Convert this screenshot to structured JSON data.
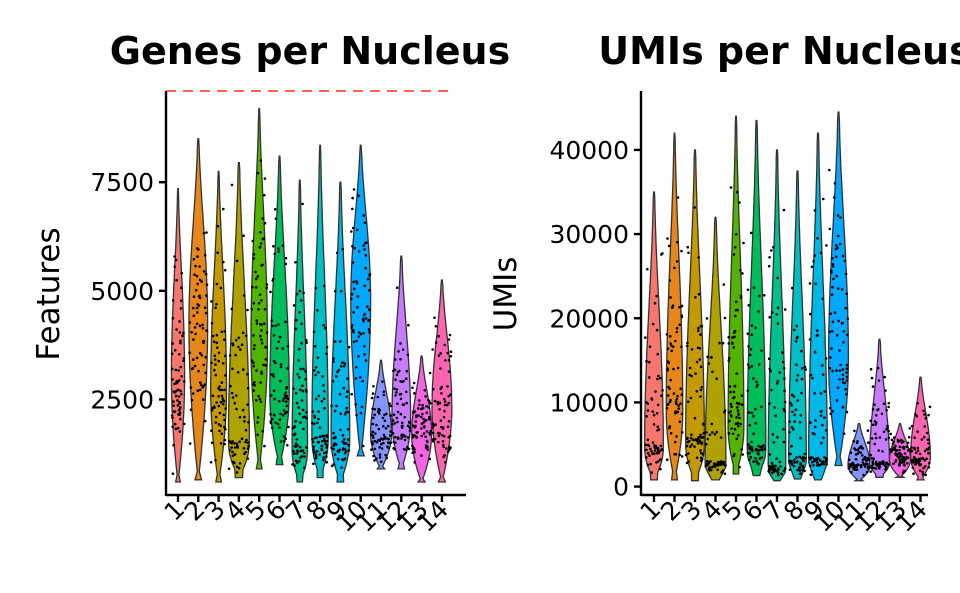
{
  "chart_data": [
    {
      "type": "violin",
      "title": "Genes per Nucleus",
      "xlabel": "",
      "ylabel": "Features",
      "categories": [
        "1",
        "2",
        "3",
        "4",
        "5",
        "6",
        "7",
        "8",
        "9",
        "10",
        "11",
        "12",
        "13",
        "14"
      ],
      "ylim": [
        300,
        9600
      ],
      "yticks": [
        2500,
        5000,
        7500
      ],
      "threshold": {
        "value": 9600,
        "color": "#ff0000",
        "style": "dashed"
      },
      "colors": [
        "#F8766D",
        "#E7861B",
        "#C49A00",
        "#AFA100",
        "#53B400",
        "#00BD5C",
        "#00C08B",
        "#00BFC4",
        "#00B8E7",
        "#00A9FF",
        "#8494FF",
        "#C77CFF",
        "#F564E3",
        "#FF64B0"
      ],
      "series": [
        {
          "category": "1",
          "min": 600,
          "max": 7350,
          "median": 2800,
          "peak": 3000,
          "peak_width": 0.6
        },
        {
          "category": "2",
          "min": 650,
          "max": 8500,
          "median": 4300,
          "peak": 4200,
          "peak_width": 0.85
        },
        {
          "category": "3",
          "min": 600,
          "max": 7750,
          "median": 2800,
          "peak": 2700,
          "peak_width": 0.72
        },
        {
          "category": "4",
          "min": 700,
          "max": 7950,
          "median": 1600,
          "peak": 1500,
          "peak_width": 0.95
        },
        {
          "category": "5",
          "min": 900,
          "max": 9200,
          "median": 4300,
          "peak": 3800,
          "peak_width": 0.75
        },
        {
          "category": "6",
          "min": 1000,
          "max": 8100,
          "median": 2700,
          "peak": 2600,
          "peak_width": 0.88
        },
        {
          "category": "7",
          "min": 600,
          "max": 7550,
          "median": 1500,
          "peak": 1300,
          "peak_width": 0.7
        },
        {
          "category": "8",
          "min": 700,
          "max": 8350,
          "median": 1700,
          "peak": 1600,
          "peak_width": 0.75
        },
        {
          "category": "9",
          "min": 600,
          "max": 7500,
          "median": 1700,
          "peak": 1600,
          "peak_width": 0.85
        },
        {
          "category": "10",
          "min": 1200,
          "max": 8350,
          "median": 4600,
          "peak": 4800,
          "peak_width": 0.9
        },
        {
          "category": "11",
          "min": 900,
          "max": 3400,
          "median": 1700,
          "peak": 1700,
          "peak_width": 0.95
        },
        {
          "category": "12",
          "min": 900,
          "max": 5800,
          "median": 2000,
          "peak": 2000,
          "peak_width": 0.85
        },
        {
          "category": "13",
          "min": 600,
          "max": 3500,
          "median": 1800,
          "peak": 1700,
          "peak_width": 0.9
        },
        {
          "category": "14",
          "min": 600,
          "max": 5250,
          "median": 2000,
          "peak": 2300,
          "peak_width": 0.9
        }
      ]
    },
    {
      "type": "violin",
      "title": "UMIs per Nucleus",
      "xlabel": "",
      "ylabel": "UMIs",
      "categories": [
        "1",
        "2",
        "3",
        "4",
        "5",
        "6",
        "7",
        "8",
        "9",
        "10",
        "11",
        "12",
        "13",
        "14"
      ],
      "ylim": [
        -1000,
        47000
      ],
      "yticks": [
        0,
        10000,
        20000,
        30000,
        40000
      ],
      "colors": [
        "#F8766D",
        "#E7861B",
        "#C49A00",
        "#AFA100",
        "#53B400",
        "#00BD5C",
        "#00C08B",
        "#00BFC4",
        "#00B8E7",
        "#00A9FF",
        "#8494FF",
        "#C77CFF",
        "#F564E3",
        "#FF64B0"
      ],
      "series": [
        {
          "category": "1",
          "min": 800,
          "max": 35000,
          "median": 5000,
          "peak": 4500,
          "peak_width": 0.85
        },
        {
          "category": "2",
          "min": 800,
          "max": 42000,
          "median": 12000,
          "peak": 9000,
          "peak_width": 0.75
        },
        {
          "category": "3",
          "min": 700,
          "max": 40000,
          "median": 6000,
          "peak": 5000,
          "peak_width": 0.85
        },
        {
          "category": "4",
          "min": 800,
          "max": 32000,
          "median": 3000,
          "peak": 2500,
          "peak_width": 0.95
        },
        {
          "category": "5",
          "min": 1500,
          "max": 44000,
          "median": 10000,
          "peak": 7000,
          "peak_width": 0.72
        },
        {
          "category": "6",
          "min": 1300,
          "max": 43500,
          "median": 5000,
          "peak": 4200,
          "peak_width": 0.85
        },
        {
          "category": "7",
          "min": 700,
          "max": 40000,
          "median": 2500,
          "peak": 2000,
          "peak_width": 0.8
        },
        {
          "category": "8",
          "min": 900,
          "max": 37500,
          "median": 3500,
          "peak": 3000,
          "peak_width": 0.8
        },
        {
          "category": "9",
          "min": 800,
          "max": 42000,
          "median": 3500,
          "peak": 3000,
          "peak_width": 0.85
        },
        {
          "category": "10",
          "min": 2500,
          "max": 44500,
          "median": 14000,
          "peak": 15000,
          "peak_width": 0.9
        },
        {
          "category": "11",
          "min": 700,
          "max": 7500,
          "median": 2800,
          "peak": 2500,
          "peak_width": 1.0
        },
        {
          "category": "12",
          "min": 1100,
          "max": 17500,
          "median": 3000,
          "peak": 2800,
          "peak_width": 0.9
        },
        {
          "category": "13",
          "min": 1100,
          "max": 7500,
          "median": 3500,
          "peak": 3200,
          "peak_width": 0.95
        },
        {
          "category": "14",
          "min": 800,
          "max": 13000,
          "median": 3500,
          "peak": 3500,
          "peak_width": 0.9
        }
      ]
    }
  ]
}
